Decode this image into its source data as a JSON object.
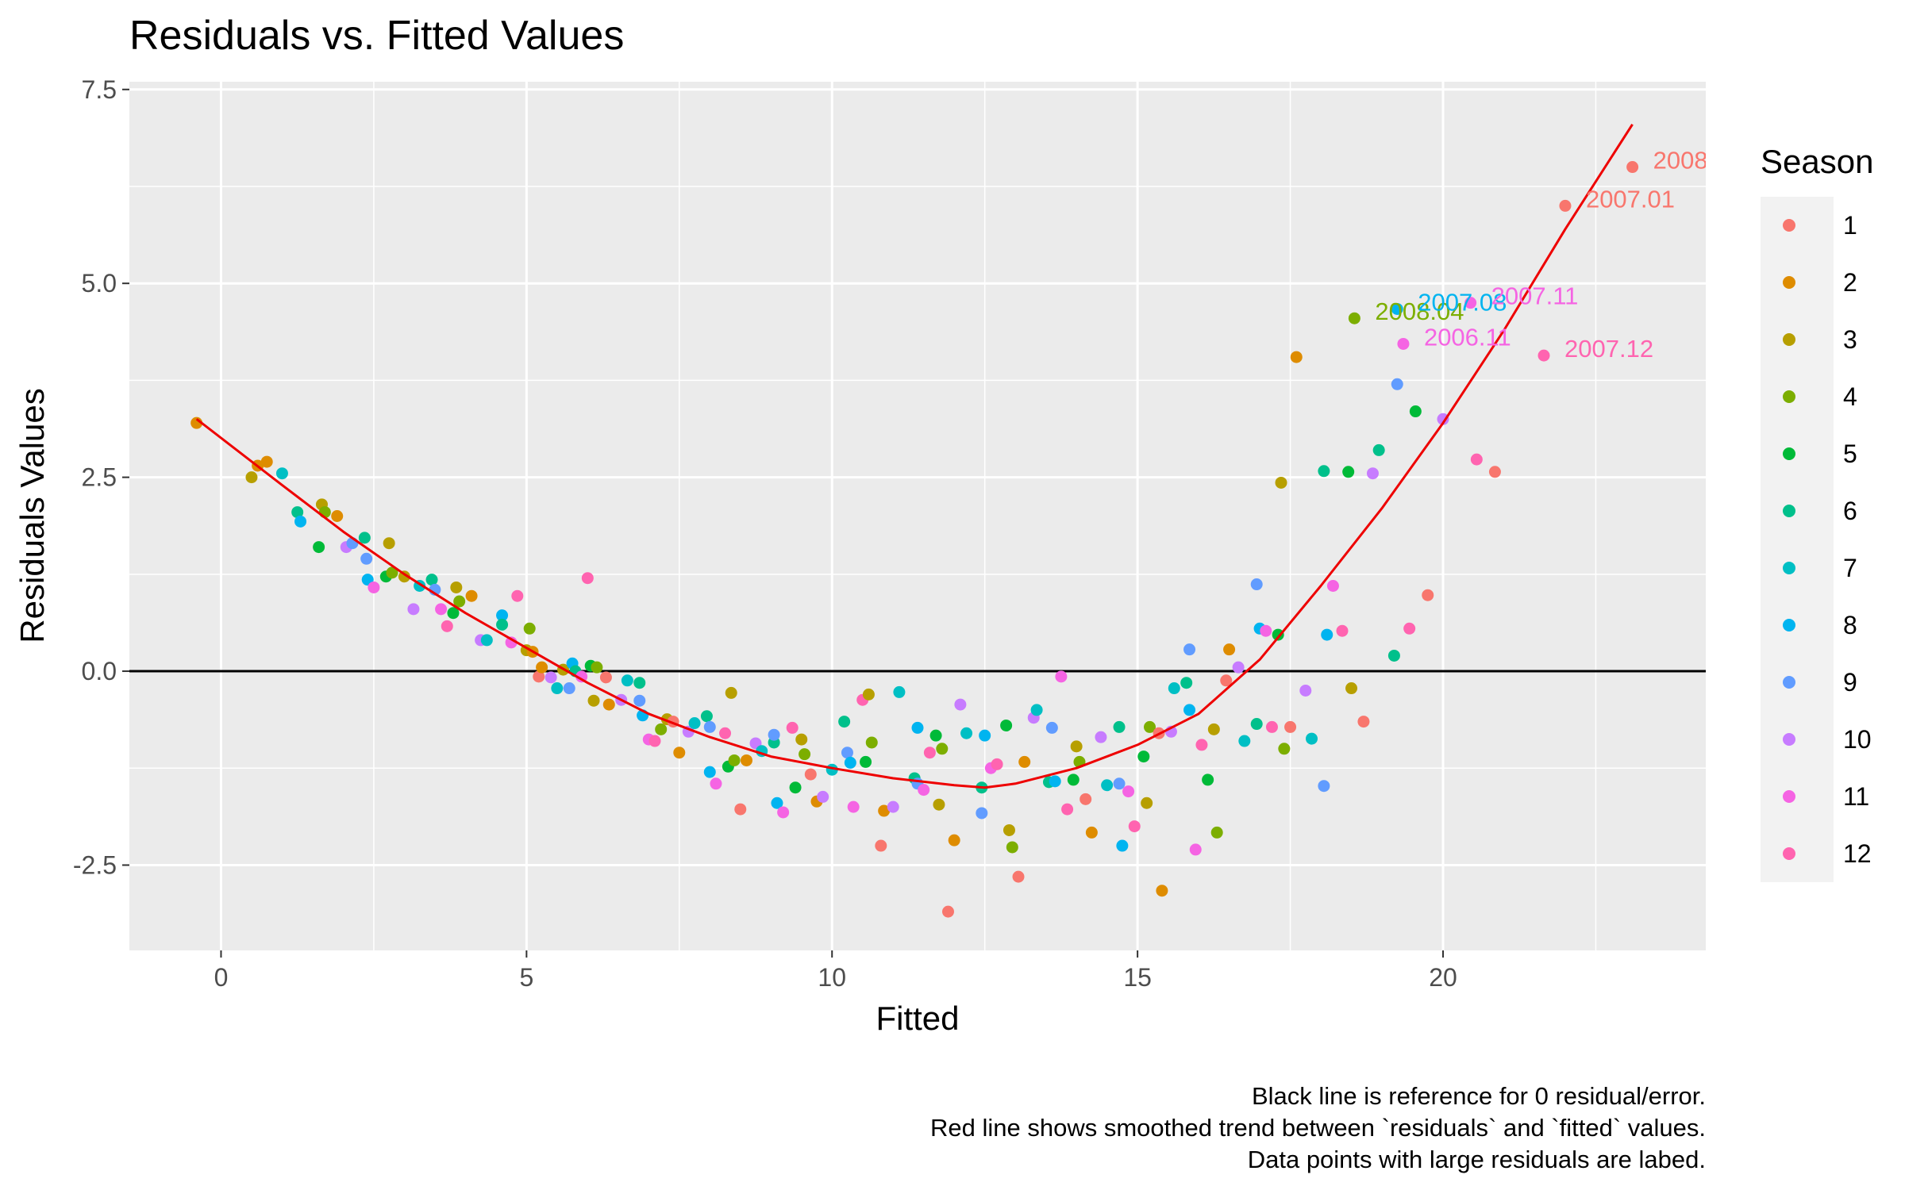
{
  "chart_data": {
    "type": "scatter",
    "title": "Residuals vs. Fitted Values",
    "xlabel": "Fitted",
    "ylabel": "Residuals Values",
    "xlim": [
      -1.5,
      24.3
    ],
    "ylim": [
      -3.6,
      7.6
    ],
    "x_ticks": [
      0,
      5,
      10,
      15,
      20
    ],
    "x_tick_labels": [
      "0",
      "5",
      "10",
      "15",
      "20"
    ],
    "y_ticks": [
      -2.5,
      0.0,
      2.5,
      5.0,
      7.5
    ],
    "y_tick_labels": [
      "-2.5",
      "0.0",
      "2.5",
      "5.0",
      "7.5"
    ],
    "grid": true,
    "reference_line_y": 0,
    "legend": {
      "title": "Season",
      "position": "right",
      "entries": [
        "1",
        "2",
        "3",
        "4",
        "5",
        "6",
        "7",
        "8",
        "9",
        "10",
        "11",
        "12"
      ]
    },
    "colors": {
      "1": "#F8766D",
      "2": "#DE8C00",
      "3": "#B79F00",
      "4": "#7CAE00",
      "5": "#00BA38",
      "6": "#00C08B",
      "7": "#00BFC4",
      "8": "#00B4F0",
      "9": "#619CFF",
      "10": "#C77CFF",
      "11": "#F564E3",
      "12": "#FF64B0",
      "trend": "#EE0000",
      "reference": "#000000",
      "panel": "#EBEBEB"
    },
    "caption": [
      "Black line is reference for 0 residual/error.",
      "Red line shows smoothed trend between `residuals` and `fitted` values.",
      "Data points with large residuals are labed."
    ],
    "trend_line": {
      "x": [
        -0.4,
        1,
        2,
        3,
        4,
        5,
        6,
        7,
        8,
        9,
        10,
        11,
        12,
        12.5,
        13,
        14,
        15,
        16,
        17,
        18,
        19,
        20,
        21,
        22,
        23.1
      ],
      "y": [
        3.25,
        2.4,
        1.8,
        1.25,
        0.75,
        0.3,
        -0.15,
        -0.55,
        -0.85,
        -1.1,
        -1.25,
        -1.38,
        -1.47,
        -1.5,
        -1.45,
        -1.25,
        -0.95,
        -0.55,
        0.15,
        1.1,
        2.1,
        3.2,
        4.4,
        5.7,
        7.05
      ]
    },
    "points": [
      {
        "x": -0.4,
        "y": 3.2,
        "s": 2
      },
      {
        "x": 0.5,
        "y": 2.5,
        "s": 3
      },
      {
        "x": 0.6,
        "y": 2.65,
        "s": 2
      },
      {
        "x": 0.75,
        "y": 2.7,
        "s": 2
      },
      {
        "x": 1.0,
        "y": 2.55,
        "s": 7
      },
      {
        "x": 1.25,
        "y": 2.05,
        "s": 6
      },
      {
        "x": 1.3,
        "y": 1.93,
        "s": 8
      },
      {
        "x": 1.6,
        "y": 1.6,
        "s": 5
      },
      {
        "x": 1.65,
        "y": 2.15,
        "s": 3
      },
      {
        "x": 1.7,
        "y": 2.05,
        "s": 4
      },
      {
        "x": 1.9,
        "y": 2.0,
        "s": 2
      },
      {
        "x": 2.05,
        "y": 1.6,
        "s": 10
      },
      {
        "x": 2.15,
        "y": 1.65,
        "s": 9
      },
      {
        "x": 2.35,
        "y": 1.72,
        "s": 6
      },
      {
        "x": 2.38,
        "y": 1.45,
        "s": 9
      },
      {
        "x": 2.4,
        "y": 1.18,
        "s": 8
      },
      {
        "x": 2.5,
        "y": 1.08,
        "s": 11
      },
      {
        "x": 2.7,
        "y": 1.22,
        "s": 5
      },
      {
        "x": 2.75,
        "y": 1.65,
        "s": 3
      },
      {
        "x": 2.8,
        "y": 1.27,
        "s": 4
      },
      {
        "x": 3.0,
        "y": 1.22,
        "s": 3
      },
      {
        "x": 3.15,
        "y": 0.8,
        "s": 10
      },
      {
        "x": 3.25,
        "y": 1.1,
        "s": 7
      },
      {
        "x": 3.45,
        "y": 1.18,
        "s": 6
      },
      {
        "x": 3.5,
        "y": 1.05,
        "s": 9
      },
      {
        "x": 3.6,
        "y": 0.8,
        "s": 11
      },
      {
        "x": 3.7,
        "y": 0.58,
        "s": 12
      },
      {
        "x": 3.8,
        "y": 0.75,
        "s": 5
      },
      {
        "x": 3.85,
        "y": 1.08,
        "s": 3
      },
      {
        "x": 3.9,
        "y": 0.9,
        "s": 4
      },
      {
        "x": 4.1,
        "y": 0.97,
        "s": 2
      },
      {
        "x": 4.25,
        "y": 0.4,
        "s": 10
      },
      {
        "x": 4.35,
        "y": 0.4,
        "s": 7
      },
      {
        "x": 4.6,
        "y": 0.72,
        "s": 8
      },
      {
        "x": 4.6,
        "y": 0.6,
        "s": 6
      },
      {
        "x": 4.75,
        "y": 0.37,
        "s": 11
      },
      {
        "x": 4.85,
        "y": 0.97,
        "s": 12
      },
      {
        "x": 5.0,
        "y": 0.27,
        "s": 3
      },
      {
        "x": 5.05,
        "y": 0.55,
        "s": 4
      },
      {
        "x": 5.1,
        "y": 0.25,
        "s": 2
      },
      {
        "x": 5.2,
        "y": -0.07,
        "s": 1
      },
      {
        "x": 5.25,
        "y": 0.05,
        "s": 2
      },
      {
        "x": 5.4,
        "y": -0.08,
        "s": 10
      },
      {
        "x": 5.5,
        "y": -0.22,
        "s": 7
      },
      {
        "x": 5.6,
        "y": 0.02,
        "s": 3
      },
      {
        "x": 5.7,
        "y": -0.22,
        "s": 9
      },
      {
        "x": 5.75,
        "y": 0.1,
        "s": 8
      },
      {
        "x": 5.8,
        "y": 0.0,
        "s": 6
      },
      {
        "x": 5.9,
        "y": -0.07,
        "s": 11
      },
      {
        "x": 6.0,
        "y": 1.2,
        "s": 12
      },
      {
        "x": 6.05,
        "y": 0.07,
        "s": 5
      },
      {
        "x": 6.1,
        "y": -0.38,
        "s": 3
      },
      {
        "x": 6.15,
        "y": 0.05,
        "s": 4
      },
      {
        "x": 6.3,
        "y": -0.08,
        "s": 1
      },
      {
        "x": 6.35,
        "y": -0.43,
        "s": 2
      },
      {
        "x": 6.55,
        "y": -0.37,
        "s": 10
      },
      {
        "x": 6.65,
        "y": -0.12,
        "s": 7
      },
      {
        "x": 6.85,
        "y": -0.38,
        "s": 9
      },
      {
        "x": 6.85,
        "y": -0.15,
        "s": 6
      },
      {
        "x": 6.9,
        "y": -0.57,
        "s": 8
      },
      {
        "x": 7.0,
        "y": -0.88,
        "s": 11
      },
      {
        "x": 7.1,
        "y": -0.9,
        "s": 12
      },
      {
        "x": 7.2,
        "y": -0.75,
        "s": 4
      },
      {
        "x": 7.3,
        "y": -0.62,
        "s": 3
      },
      {
        "x": 7.4,
        "y": -0.65,
        "s": 1
      },
      {
        "x": 7.5,
        "y": -1.05,
        "s": 2
      },
      {
        "x": 7.65,
        "y": -0.78,
        "s": 10
      },
      {
        "x": 7.75,
        "y": -0.67,
        "s": 7
      },
      {
        "x": 7.95,
        "y": -0.58,
        "s": 6
      },
      {
        "x": 8.0,
        "y": -0.72,
        "s": 9
      },
      {
        "x": 8.0,
        "y": -1.3,
        "s": 8
      },
      {
        "x": 8.1,
        "y": -1.45,
        "s": 11
      },
      {
        "x": 8.25,
        "y": -0.8,
        "s": 12
      },
      {
        "x": 8.3,
        "y": -1.23,
        "s": 5
      },
      {
        "x": 8.35,
        "y": -0.28,
        "s": 3
      },
      {
        "x": 8.4,
        "y": -1.15,
        "s": 4
      },
      {
        "x": 8.5,
        "y": -1.78,
        "s": 1
      },
      {
        "x": 8.6,
        "y": -1.15,
        "s": 2
      },
      {
        "x": 8.75,
        "y": -0.93,
        "s": 10
      },
      {
        "x": 8.85,
        "y": -1.03,
        "s": 7
      },
      {
        "x": 9.05,
        "y": -0.92,
        "s": 6
      },
      {
        "x": 9.05,
        "y": -0.82,
        "s": 9
      },
      {
        "x": 9.1,
        "y": -1.7,
        "s": 8
      },
      {
        "x": 9.2,
        "y": -1.82,
        "s": 11
      },
      {
        "x": 9.35,
        "y": -0.73,
        "s": 12
      },
      {
        "x": 9.4,
        "y": -1.5,
        "s": 5
      },
      {
        "x": 9.5,
        "y": -0.88,
        "s": 3
      },
      {
        "x": 9.55,
        "y": -1.07,
        "s": 4
      },
      {
        "x": 9.65,
        "y": -1.33,
        "s": 1
      },
      {
        "x": 9.75,
        "y": -1.68,
        "s": 2
      },
      {
        "x": 9.85,
        "y": -1.62,
        "s": 10
      },
      {
        "x": 10.0,
        "y": -1.27,
        "s": 7
      },
      {
        "x": 10.2,
        "y": -0.65,
        "s": 6
      },
      {
        "x": 10.25,
        "y": -1.05,
        "s": 9
      },
      {
        "x": 10.3,
        "y": -1.18,
        "s": 8
      },
      {
        "x": 10.35,
        "y": -1.75,
        "s": 11
      },
      {
        "x": 10.5,
        "y": -0.37,
        "s": 12
      },
      {
        "x": 10.55,
        "y": -1.17,
        "s": 5
      },
      {
        "x": 10.6,
        "y": -0.3,
        "s": 3
      },
      {
        "x": 10.65,
        "y": -0.92,
        "s": 4
      },
      {
        "x": 10.8,
        "y": -2.25,
        "s": 1
      },
      {
        "x": 10.85,
        "y": -1.8,
        "s": 2
      },
      {
        "x": 11.0,
        "y": -1.75,
        "s": 10
      },
      {
        "x": 11.1,
        "y": -0.27,
        "s": 7
      },
      {
        "x": 11.35,
        "y": -1.38,
        "s": 6
      },
      {
        "x": 11.4,
        "y": -1.45,
        "s": 9
      },
      {
        "x": 11.4,
        "y": -0.73,
        "s": 8
      },
      {
        "x": 11.5,
        "y": -1.53,
        "s": 11
      },
      {
        "x": 11.6,
        "y": -1.05,
        "s": 12
      },
      {
        "x": 11.7,
        "y": -0.83,
        "s": 5
      },
      {
        "x": 11.75,
        "y": -1.72,
        "s": 3
      },
      {
        "x": 11.8,
        "y": -1.0,
        "s": 4
      },
      {
        "x": 11.9,
        "y": -3.1,
        "s": 1
      },
      {
        "x": 12.0,
        "y": -2.18,
        "s": 2
      },
      {
        "x": 12.1,
        "y": -0.43,
        "s": 10
      },
      {
        "x": 12.2,
        "y": -0.8,
        "s": 7
      },
      {
        "x": 12.45,
        "y": -1.5,
        "s": 6
      },
      {
        "x": 12.45,
        "y": -1.83,
        "s": 9
      },
      {
        "x": 12.5,
        "y": -0.83,
        "s": 8
      },
      {
        "x": 12.6,
        "y": -1.25,
        "s": 11
      },
      {
        "x": 12.7,
        "y": -1.2,
        "s": 12
      },
      {
        "x": 12.85,
        "y": -0.7,
        "s": 5
      },
      {
        "x": 12.9,
        "y": -2.05,
        "s": 3
      },
      {
        "x": 12.95,
        "y": -2.27,
        "s": 4
      },
      {
        "x": 13.05,
        "y": -2.65,
        "s": 1
      },
      {
        "x": 13.15,
        "y": -1.17,
        "s": 2
      },
      {
        "x": 13.3,
        "y": -0.6,
        "s": 10
      },
      {
        "x": 13.35,
        "y": -0.5,
        "s": 7
      },
      {
        "x": 13.55,
        "y": -1.43,
        "s": 6
      },
      {
        "x": 13.6,
        "y": -0.73,
        "s": 9
      },
      {
        "x": 13.65,
        "y": -1.42,
        "s": 8
      },
      {
        "x": 13.75,
        "y": -0.07,
        "s": 11
      },
      {
        "x": 13.85,
        "y": -1.78,
        "s": 12
      },
      {
        "x": 13.95,
        "y": -1.4,
        "s": 5
      },
      {
        "x": 14.0,
        "y": -0.97,
        "s": 3
      },
      {
        "x": 14.05,
        "y": -1.17,
        "s": 4
      },
      {
        "x": 14.15,
        "y": -1.65,
        "s": 1
      },
      {
        "x": 14.25,
        "y": -2.08,
        "s": 2
      },
      {
        "x": 14.4,
        "y": -0.85,
        "s": 10
      },
      {
        "x": 14.5,
        "y": -1.47,
        "s": 7
      },
      {
        "x": 14.7,
        "y": -0.72,
        "s": 6
      },
      {
        "x": 14.7,
        "y": -1.45,
        "s": 9
      },
      {
        "x": 14.75,
        "y": -2.25,
        "s": 8
      },
      {
        "x": 14.85,
        "y": -1.55,
        "s": 11
      },
      {
        "x": 14.95,
        "y": -2.0,
        "s": 12
      },
      {
        "x": 15.1,
        "y": -1.1,
        "s": 5
      },
      {
        "x": 15.15,
        "y": -1.7,
        "s": 3
      },
      {
        "x": 15.2,
        "y": -0.72,
        "s": 4
      },
      {
        "x": 15.35,
        "y": -0.8,
        "s": 1
      },
      {
        "x": 15.4,
        "y": -2.83,
        "s": 2
      },
      {
        "x": 15.55,
        "y": -0.78,
        "s": 10
      },
      {
        "x": 15.6,
        "y": -0.22,
        "s": 7
      },
      {
        "x": 15.8,
        "y": -0.15,
        "s": 6
      },
      {
        "x": 15.85,
        "y": 0.28,
        "s": 9
      },
      {
        "x": 15.85,
        "y": -0.5,
        "s": 8
      },
      {
        "x": 15.95,
        "y": -2.3,
        "s": 11
      },
      {
        "x": 16.05,
        "y": -0.95,
        "s": 12
      },
      {
        "x": 16.15,
        "y": -1.4,
        "s": 5
      },
      {
        "x": 16.25,
        "y": -0.75,
        "s": 3
      },
      {
        "x": 16.3,
        "y": -2.08,
        "s": 4
      },
      {
        "x": 16.45,
        "y": -0.12,
        "s": 1
      },
      {
        "x": 16.5,
        "y": 0.28,
        "s": 2
      },
      {
        "x": 16.65,
        "y": 0.05,
        "s": 10
      },
      {
        "x": 16.75,
        "y": -0.9,
        "s": 7
      },
      {
        "x": 16.95,
        "y": -0.68,
        "s": 6
      },
      {
        "x": 16.95,
        "y": 1.12,
        "s": 9
      },
      {
        "x": 17.0,
        "y": 0.55,
        "s": 8
      },
      {
        "x": 17.1,
        "y": 0.52,
        "s": 11
      },
      {
        "x": 17.2,
        "y": -0.72,
        "s": 12
      },
      {
        "x": 17.3,
        "y": 0.47,
        "s": 5
      },
      {
        "x": 17.35,
        "y": 2.43,
        "s": 3
      },
      {
        "x": 17.4,
        "y": -1.0,
        "s": 4
      },
      {
        "x": 17.5,
        "y": -0.72,
        "s": 1
      },
      {
        "x": 17.6,
        "y": 4.05,
        "s": 2
      },
      {
        "x": 17.75,
        "y": -0.25,
        "s": 10
      },
      {
        "x": 17.85,
        "y": -0.87,
        "s": 7
      },
      {
        "x": 18.05,
        "y": 2.58,
        "s": 6
      },
      {
        "x": 18.05,
        "y": -1.48,
        "s": 9
      },
      {
        "x": 18.1,
        "y": 0.47,
        "s": 8
      },
      {
        "x": 18.2,
        "y": 1.1,
        "s": 11
      },
      {
        "x": 18.35,
        "y": 0.52,
        "s": 12
      },
      {
        "x": 18.45,
        "y": 2.57,
        "s": 5
      },
      {
        "x": 18.5,
        "y": -0.22,
        "s": 3
      },
      {
        "x": 18.55,
        "y": 4.55,
        "s": 4
      },
      {
        "x": 18.7,
        "y": -0.65,
        "s": 1
      },
      {
        "x": 18.85,
        "y": 2.55,
        "s": 10
      },
      {
        "x": 18.95,
        "y": 2.85,
        "s": 6
      },
      {
        "x": 19.2,
        "y": 0.2,
        "s": 6
      },
      {
        "x": 19.25,
        "y": 3.7,
        "s": 9
      },
      {
        "x": 19.25,
        "y": 4.67,
        "s": 8
      },
      {
        "x": 19.35,
        "y": 4.22,
        "s": 11
      },
      {
        "x": 19.45,
        "y": 0.55,
        "s": 12
      },
      {
        "x": 19.55,
        "y": 3.35,
        "s": 5
      },
      {
        "x": 19.75,
        "y": 0.98,
        "s": 1
      },
      {
        "x": 20.0,
        "y": 3.25,
        "s": 10
      },
      {
        "x": 20.45,
        "y": 4.75,
        "s": 11
      },
      {
        "x": 20.55,
        "y": 2.73,
        "s": 12
      },
      {
        "x": 20.85,
        "y": 2.57,
        "s": 1
      },
      {
        "x": 21.65,
        "y": 4.07,
        "s": 12
      },
      {
        "x": 22.0,
        "y": 6.0,
        "s": 1
      },
      {
        "x": 23.1,
        "y": 6.5,
        "s": 1
      }
    ],
    "annotations": [
      {
        "x": 23.1,
        "y": 6.5,
        "text": "2008",
        "s": 1
      },
      {
        "x": 22.0,
        "y": 6.0,
        "text": "2007.01",
        "s": 1
      },
      {
        "x": 18.55,
        "y": 4.55,
        "text": "2008.04",
        "s": 4
      },
      {
        "x": 19.25,
        "y": 4.67,
        "text": "2007.08",
        "s": 8
      },
      {
        "x": 20.45,
        "y": 4.75,
        "text": "2007.11",
        "s": 11
      },
      {
        "x": 19.35,
        "y": 4.22,
        "text": "2006.11",
        "s": 11
      },
      {
        "x": 21.65,
        "y": 4.07,
        "text": "2007.12",
        "s": 12
      }
    ]
  }
}
